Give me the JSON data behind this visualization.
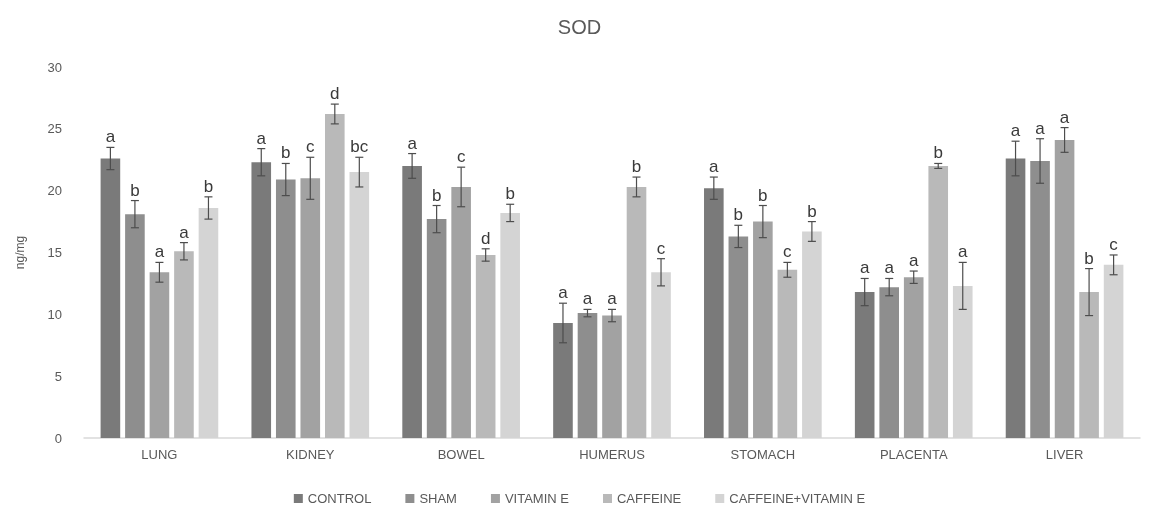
{
  "chart_data": {
    "type": "bar",
    "title": "SOD",
    "ylabel": "ng/mg",
    "categories": [
      "LUNG",
      "KIDNEY",
      "BOWEL",
      "HUMERUS",
      "STOMACH",
      "PLACENTA",
      "LIVER"
    ],
    "series": [
      {
        "name": "CONTROL",
        "color": "#7a7a7a",
        "values": [
          22.6,
          22.3,
          22.0,
          9.3,
          20.2,
          11.8,
          22.6
        ],
        "errors": [
          0.9,
          1.1,
          1.0,
          1.6,
          0.9,
          1.1,
          1.4
        ],
        "value_labels": [
          "a",
          "a",
          "a",
          "a",
          "a",
          "a",
          "a"
        ]
      },
      {
        "name": "SHAM",
        "color": "#8e8e8e",
        "values": [
          18.1,
          20.9,
          17.7,
          10.1,
          16.3,
          12.2,
          22.4
        ],
        "errors": [
          1.1,
          1.3,
          1.1,
          0.3,
          0.9,
          0.7,
          1.8
        ],
        "value_labels": [
          "b",
          "b",
          "b",
          "a",
          "b",
          "a",
          "a"
        ]
      },
      {
        "name": "VITAMIN E",
        "color": "#a2a2a2",
        "values": [
          13.4,
          21.0,
          20.3,
          9.9,
          17.5,
          13.0,
          24.1
        ],
        "errors": [
          0.8,
          1.7,
          1.6,
          0.5,
          1.3,
          0.5,
          1.0
        ],
        "value_labels": [
          "a",
          "c",
          "c",
          "a",
          "b",
          "a",
          "a"
        ]
      },
      {
        "name": "CAFFEINE",
        "color": "#b9b9b9",
        "values": [
          15.1,
          26.2,
          14.8,
          20.3,
          13.6,
          22.0,
          11.8
        ],
        "errors": [
          0.7,
          0.8,
          0.5,
          0.8,
          0.6,
          0.2,
          1.9
        ],
        "value_labels": [
          "a",
          "d",
          "d",
          "b",
          "c",
          "b",
          "b"
        ]
      },
      {
        "name": "CAFFEINE+VITAMIN E",
        "color": "#d4d4d4",
        "values": [
          18.6,
          21.5,
          18.2,
          13.4,
          16.7,
          12.3,
          14.0
        ],
        "errors": [
          0.9,
          1.2,
          0.7,
          1.1,
          0.8,
          1.9,
          0.8
        ],
        "value_labels": [
          "b",
          "bc",
          "b",
          "c",
          "b",
          "a",
          "c"
        ]
      }
    ],
    "ylim": [
      0,
      30
    ],
    "yticks": [
      0,
      5,
      10,
      15,
      20,
      25,
      30
    ],
    "grid": false,
    "legend": "bottom"
  }
}
